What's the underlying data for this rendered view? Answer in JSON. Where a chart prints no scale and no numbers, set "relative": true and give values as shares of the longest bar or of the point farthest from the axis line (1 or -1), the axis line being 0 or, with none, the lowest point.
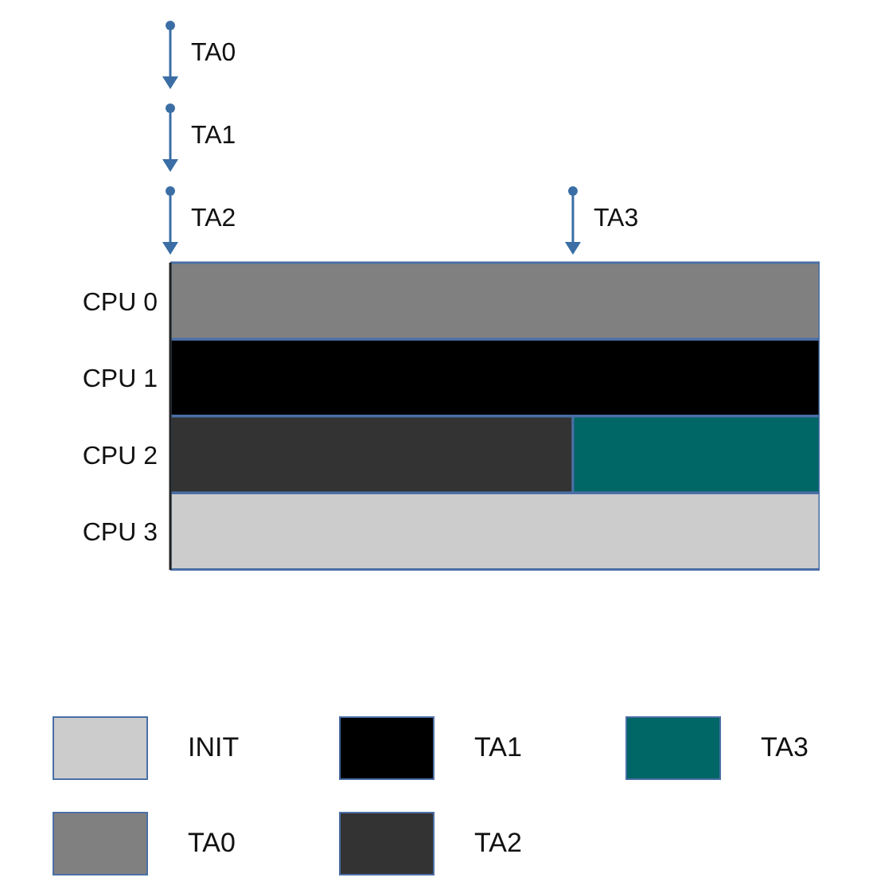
{
  "chart_data": {
    "type": "bar",
    "orientation": "horizontal",
    "stacked": true,
    "relative": true,
    "categories": [
      "CPU  0",
      "CPU 1",
      "CPU 2",
      "CPU 3"
    ],
    "series": [
      {
        "name": "INIT",
        "color": "#cccccc",
        "values": [
          null,
          null,
          null,
          1
        ]
      },
      {
        "name": "TA0",
        "color": "#808080",
        "values": [
          1,
          null,
          null,
          null
        ]
      },
      {
        "name": "TA1",
        "color": "#000000",
        "values": [
          null,
          1,
          null,
          null
        ]
      },
      {
        "name": "TA2",
        "color": "#333333",
        "values": [
          null,
          null,
          0.62,
          null
        ]
      },
      {
        "name": "TA3",
        "color": "#006666",
        "values": [
          null,
          null,
          0.38,
          null
        ]
      }
    ],
    "annotations": [
      "TA0",
      "TA1",
      "TA2",
      "TA3"
    ],
    "legend": "bottom"
  }
}
